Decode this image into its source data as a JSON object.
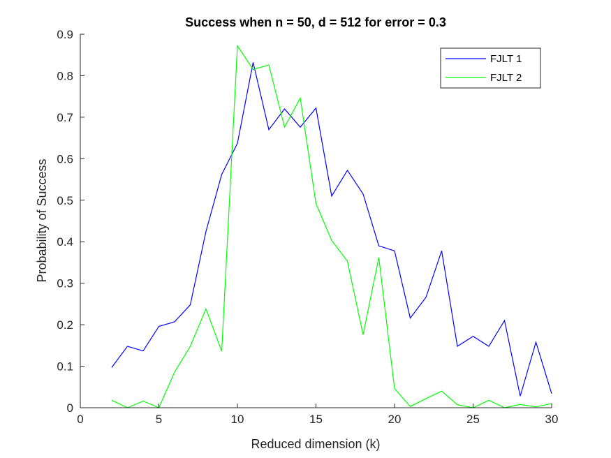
{
  "chart_data": {
    "type": "line",
    "title": "Success when n = 50, d = 512 for error = 0.3",
    "xlabel": "Reduced dimension (k)",
    "ylabel": "Probability of Success",
    "xlim": [
      0,
      30
    ],
    "ylim": [
      0,
      0.9
    ],
    "xticks": [
      "0",
      "5",
      "10",
      "15",
      "20",
      "25",
      "30"
    ],
    "yticks": [
      "0",
      "0.1",
      "0.2",
      "0.3",
      "0.4",
      "0.5",
      "0.6",
      "0.7",
      "0.8",
      "0.9"
    ],
    "grid": false,
    "legend_position": "top-right",
    "x": [
      2,
      3,
      4,
      5,
      6,
      7,
      8,
      9,
      10,
      11,
      12,
      13,
      14,
      15,
      16,
      17,
      18,
      19,
      20,
      21,
      22,
      23,
      24,
      25,
      26,
      27,
      28,
      29,
      30
    ],
    "series": [
      {
        "name": "FJLT 1",
        "color": "#0000ff",
        "values": [
          0.097,
          0.148,
          0.137,
          0.196,
          0.207,
          0.248,
          0.425,
          0.562,
          0.637,
          0.832,
          0.67,
          0.72,
          0.676,
          0.722,
          0.51,
          0.572,
          0.515,
          0.39,
          0.378,
          0.216,
          0.266,
          0.378,
          0.148,
          0.172,
          0.148,
          0.21,
          0.028,
          0.158,
          0.034
        ]
      },
      {
        "name": "FJLT 2",
        "color": "#00ff00",
        "values": [
          0.018,
          0.0,
          0.016,
          0.0,
          0.086,
          0.148,
          0.238,
          0.136,
          0.872,
          0.815,
          0.826,
          0.676,
          0.746,
          0.492,
          0.403,
          0.353,
          0.176,
          0.362,
          0.046,
          0.003,
          0.022,
          0.04,
          0.007,
          0.0,
          0.018,
          0.0,
          0.008,
          0.002,
          0.01
        ]
      }
    ]
  }
}
